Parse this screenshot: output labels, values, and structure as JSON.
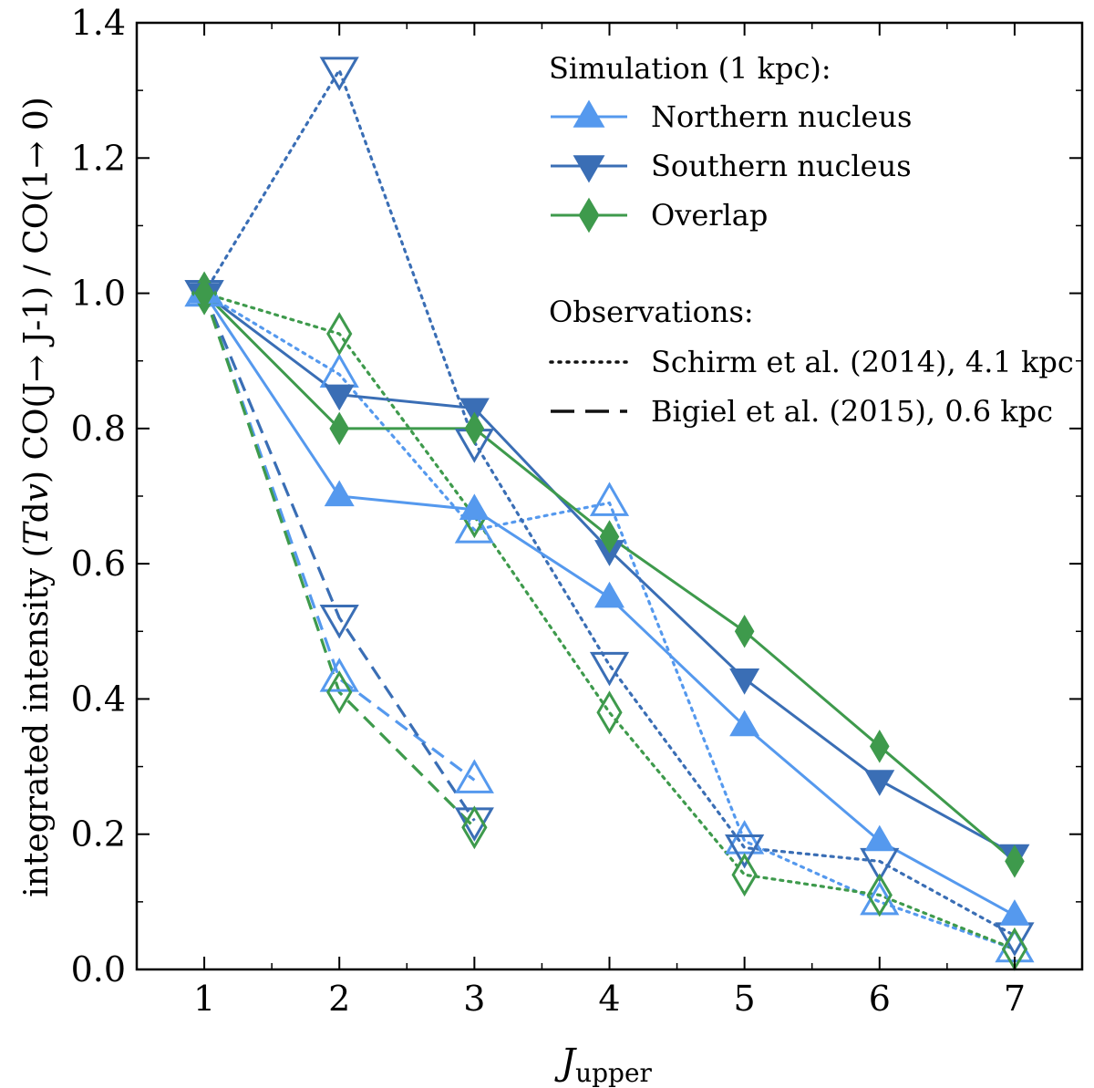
{
  "chart_data": {
    "type": "line",
    "x": [
      1,
      2,
      3,
      4,
      5,
      6,
      7
    ],
    "xlabel": "J",
    "xlabel_sub": "upper",
    "ylabel_parts": [
      "integrated intensity (",
      "T",
      "d",
      "v",
      ") CO(J→ J-1) / CO(1→ 0)"
    ],
    "xlim": [
      0.5,
      7.5
    ],
    "ylim": [
      0.0,
      1.4
    ],
    "xticks": [
      1,
      2,
      3,
      4,
      5,
      6,
      7
    ],
    "yticks": [
      0.0,
      0.2,
      0.4,
      0.6,
      0.8,
      1.0,
      1.2,
      1.4
    ],
    "ytick_labels": [
      "0.0",
      "0.2",
      "0.4",
      "0.6",
      "0.8",
      "1.0",
      "1.2",
      "1.4"
    ],
    "grid": false,
    "legend_position": "top-right",
    "colors": {
      "northern": "#5599EE",
      "southern": "#3A6EB5",
      "overlap": "#3E9A4C"
    },
    "series": [
      {
        "name": "Northern nucleus",
        "group": "simulation",
        "color": "northern",
        "marker": "triangle-up",
        "filled": true,
        "style": "solid",
        "x": [
          1,
          2,
          3,
          4,
          5,
          6,
          7
        ],
        "values": [
          1.0,
          0.7,
          0.68,
          0.55,
          0.36,
          0.19,
          0.08
        ]
      },
      {
        "name": "Southern nucleus",
        "group": "simulation",
        "color": "southern",
        "marker": "triangle-down",
        "filled": true,
        "style": "solid",
        "x": [
          1,
          2,
          3,
          4,
          5,
          6,
          7
        ],
        "values": [
          1.0,
          0.85,
          0.83,
          0.62,
          0.43,
          0.28,
          0.17
        ]
      },
      {
        "name": "Overlap",
        "group": "simulation",
        "color": "overlap",
        "marker": "diamond",
        "filled": true,
        "style": "solid",
        "x": [
          1,
          2,
          3,
          4,
          5,
          6,
          7
        ],
        "values": [
          1.0,
          0.8,
          0.8,
          0.64,
          0.5,
          0.33,
          0.16
        ]
      },
      {
        "name": "Northern nucleus (Schirm et al. 2014)",
        "group": "observation",
        "color": "northern",
        "marker": "triangle-up",
        "filled": false,
        "style": "dotted",
        "x": [
          1,
          2,
          3,
          4,
          5,
          6,
          7
        ],
        "values": [
          1.0,
          0.88,
          0.65,
          0.69,
          0.19,
          0.1,
          0.03
        ]
      },
      {
        "name": "Southern nucleus (Schirm et al. 2014)",
        "group": "observation",
        "color": "southern",
        "marker": "triangle-down",
        "filled": false,
        "style": "dotted",
        "x": [
          1,
          2,
          3,
          4,
          5,
          6,
          7
        ],
        "values": [
          1.0,
          1.33,
          0.78,
          0.45,
          0.18,
          0.16,
          0.05
        ]
      },
      {
        "name": "Overlap (Schirm et al. 2014)",
        "group": "observation",
        "color": "overlap",
        "marker": "diamond",
        "filled": false,
        "style": "dotted",
        "x": [
          1,
          2,
          3,
          4,
          5,
          6,
          7
        ],
        "values": [
          1.0,
          0.94,
          0.67,
          0.38,
          0.14,
          0.11,
          0.03
        ]
      },
      {
        "name": "Northern nucleus (Bigiel et al. 2015)",
        "group": "observation",
        "color": "northern",
        "marker": "triangle-up",
        "filled": false,
        "style": "dashed",
        "x": [
          1,
          2,
          3
        ],
        "values": [
          1.0,
          0.43,
          0.28
        ]
      },
      {
        "name": "Southern nucleus (Bigiel et al. 2015)",
        "group": "observation",
        "color": "southern",
        "marker": "triangle-down",
        "filled": false,
        "style": "dashed",
        "x": [
          1,
          2,
          3
        ],
        "values": [
          1.0,
          0.52,
          0.22
        ]
      },
      {
        "name": "Overlap (Bigiel et al. 2015)",
        "group": "observation",
        "color": "overlap",
        "marker": "diamond",
        "filled": false,
        "style": "dashed",
        "x": [
          1,
          2,
          3
        ],
        "values": [
          1.0,
          0.41,
          0.21
        ]
      }
    ],
    "legend": {
      "simulation_title": "Simulation (1 kpc):",
      "simulation_entries": [
        {
          "label": "Northern nucleus",
          "color": "northern",
          "marker": "triangle-up"
        },
        {
          "label": "Southern nucleus",
          "color": "southern",
          "marker": "triangle-down"
        },
        {
          "label": "Overlap",
          "color": "overlap",
          "marker": "diamond"
        }
      ],
      "observations_title": "Observations:",
      "observation_entries": [
        {
          "label": "Schirm et al. (2014), 4.1 kpc",
          "style": "dotted"
        },
        {
          "label": "Bigiel et al. (2015), 0.6 kpc",
          "style": "dashed"
        }
      ]
    }
  }
}
